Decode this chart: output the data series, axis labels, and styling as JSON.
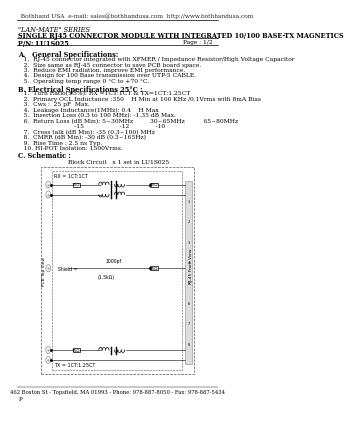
{
  "bg_color": "#ffffff",
  "header_text": "  Bothhand USA  e-mail: sales@bothhandusa.com  http://www.bothhandusa.com",
  "series_text": "\"LAN-MATE\" SERIES",
  "title_text": "SINGLE RJ45 CONNECTOR MODULE WITH INTEGRATED 10/100 BASE-TX MAGNETICS",
  "pn_text": "P/N: LU1S025",
  "page_text": "Page : 1/2",
  "section_a": "A.   General Specifications:",
  "spec_a": [
    "   1.  RJ-45 connector integrated with XFMER / Impedance Resistor/High Voltage Capacitor",
    "   2.  Size same as RJ-45 connector to save PCB board space.",
    "   3.  Reduce EMI radiation, improve EMI performance.",
    "   4.  Design for 100 Base transmission over UTP-5 CABLE.",
    "   5.  Operating temp range 0 °C to +70 °C."
  ],
  "section_b": "B. Electrical Specifications 25°C :",
  "spec_b": [
    "   1.  Turn Ratio(±5%): RX =1CT:1CT & TX=1CT:1.25CT",
    "   2.  Primary OCL Inductance :350    H Min at 100 KHz /0.1Vrms with 8mA Bias",
    "   3.  Cws :  25 pF  Max.",
    "   4.  Leakage Inductance(1MHz): 0.4    H Max",
    "   5.  Insertion Loss (0.3 to 100 MHz): -1.35 dB Max.",
    "   6.  Return Loss (dB Min): 5~30MHz         30~65MHz          65~80MHz"
  ],
  "spec_b2": [
    "   7.  Cross talk (dB Min): -35 (0.3~100) MHz",
    "   8.  CMRR (dB Min): -30 dB (0.3~165Hz)",
    "   9.  Rise Time : 2.5 ns Typ.",
    "   10. HI-POT Isolation: 1500Vrms."
  ],
  "return_loss_values": "                              -15                   -12              -10",
  "section_c": "C. Schematic :",
  "schematic_title": "Block Circuit   x 1 set in LU1S025",
  "footer": "462 Boston St - Topsfield, MA 01993 - Phone: 978-887-8050 - Fax: 978-887-5434",
  "footer2": "P"
}
